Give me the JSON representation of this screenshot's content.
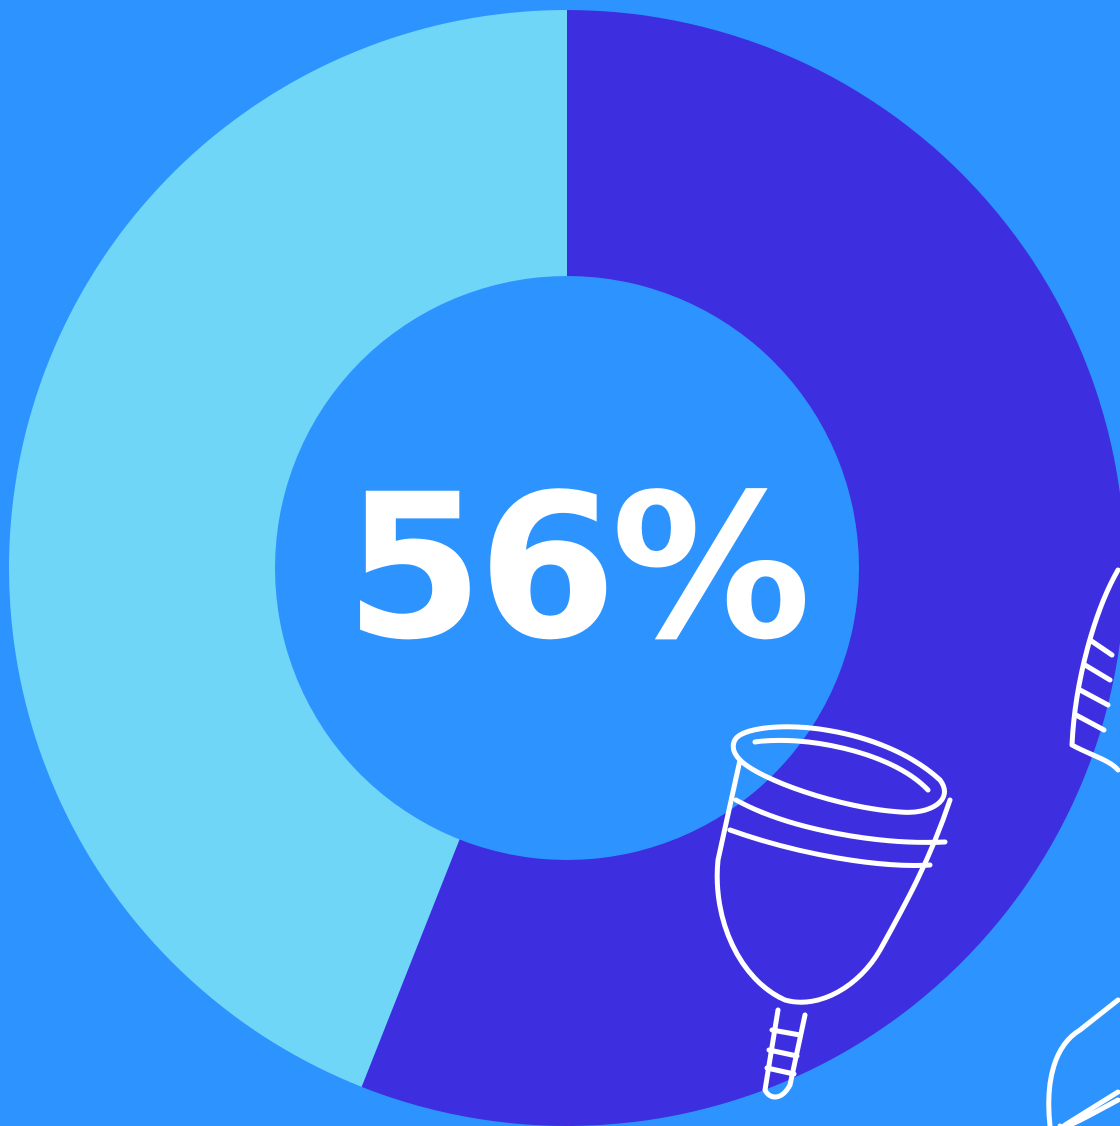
{
  "chart_data": {
    "type": "donut",
    "values": [
      56,
      44
    ],
    "value_labels": [
      "56%",
      null
    ],
    "colors": [
      "#3d2fdf",
      "#6fd6f8"
    ],
    "background": "#2d94ff"
  }
}
